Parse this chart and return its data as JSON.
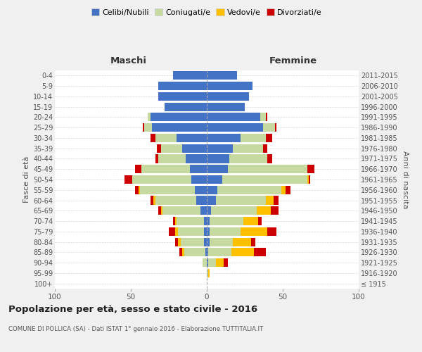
{
  "age_groups": [
    "100+",
    "95-99",
    "90-94",
    "85-89",
    "80-84",
    "75-79",
    "70-74",
    "65-69",
    "60-64",
    "55-59",
    "50-54",
    "45-49",
    "40-44",
    "35-39",
    "30-34",
    "25-29",
    "20-24",
    "15-19",
    "10-14",
    "5-9",
    "0-4"
  ],
  "birth_years": [
    "≤ 1915",
    "1916-1920",
    "1921-1925",
    "1926-1930",
    "1931-1935",
    "1936-1940",
    "1941-1945",
    "1946-1950",
    "1951-1955",
    "1956-1960",
    "1961-1965",
    "1966-1970",
    "1971-1975",
    "1976-1980",
    "1981-1985",
    "1986-1990",
    "1991-1995",
    "1996-2000",
    "2001-2005",
    "2006-2010",
    "2011-2015"
  ],
  "colors": {
    "celibi": "#4472c4",
    "coniugati": "#c5d9a0",
    "vedovi": "#ffc000",
    "divorziati": "#cc0000"
  },
  "maschi": {
    "celibi": [
      0,
      0,
      0,
      1,
      2,
      2,
      2,
      4,
      7,
      8,
      10,
      11,
      14,
      16,
      20,
      36,
      37,
      28,
      32,
      32,
      22
    ],
    "coniugati": [
      0,
      0,
      3,
      14,
      15,
      17,
      18,
      25,
      27,
      36,
      39,
      32,
      18,
      14,
      14,
      5,
      2,
      0,
      0,
      0,
      0
    ],
    "vedovi": [
      0,
      0,
      0,
      1,
      2,
      2,
      1,
      1,
      1,
      1,
      0,
      0,
      0,
      0,
      0,
      0,
      0,
      0,
      0,
      0,
      0
    ],
    "divorziati": [
      0,
      0,
      0,
      2,
      2,
      4,
      1,
      2,
      2,
      2,
      5,
      4,
      2,
      3,
      3,
      1,
      0,
      0,
      0,
      0,
      0
    ]
  },
  "femmine": {
    "celibi": [
      0,
      0,
      1,
      1,
      2,
      2,
      2,
      3,
      6,
      7,
      10,
      14,
      15,
      17,
      22,
      37,
      35,
      25,
      28,
      30,
      20
    ],
    "coniugati": [
      0,
      1,
      5,
      15,
      15,
      20,
      22,
      30,
      33,
      42,
      56,
      52,
      25,
      20,
      17,
      8,
      4,
      0,
      0,
      0,
      0
    ],
    "vedovi": [
      0,
      1,
      5,
      15,
      12,
      18,
      10,
      9,
      5,
      3,
      1,
      0,
      0,
      0,
      0,
      0,
      0,
      0,
      0,
      0,
      0
    ],
    "divorziati": [
      0,
      0,
      3,
      8,
      3,
      6,
      2,
      5,
      3,
      3,
      1,
      5,
      3,
      3,
      4,
      1,
      1,
      0,
      0,
      0,
      0
    ]
  },
  "xlim": 100,
  "title": "Popolazione per età, sesso e stato civile - 2016",
  "subtitle": "COMUNE DI POLLICA (SA) - Dati ISTAT 1° gennaio 2016 - Elaborazione TUTTITALIA.IT",
  "ylabel_left": "Fasce di età",
  "ylabel_right": "Anni di nascita",
  "xlabel_left": "Maschi",
  "xlabel_right": "Femmine",
  "legend_labels": [
    "Celibi/Nubili",
    "Coniugati/e",
    "Vedovi/e",
    "Divorziati/e"
  ],
  "bg_color": "#f0f0f0",
  "plot_bg": "#ffffff",
  "grid_color": "#cccccc"
}
